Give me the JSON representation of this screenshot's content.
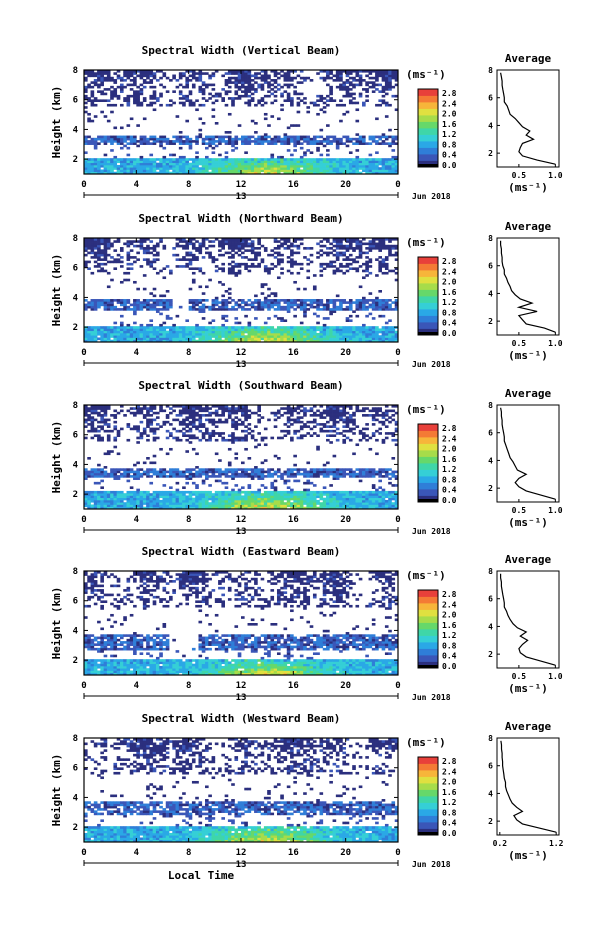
{
  "figure": {
    "xlabel": "Local Time",
    "date_label": "Jun 2018",
    "day_label": "13",
    "ylabel": "Height (km)",
    "cbar_unit": "(ms⁻¹)",
    "avg_title": "Average",
    "avg_xunit": "(ms⁻¹)"
  },
  "colormap": [
    "#2b2f7e",
    "#3a56b8",
    "#2f7ed8",
    "#2aa8e6",
    "#35cfd6",
    "#3fd6a8",
    "#66d86a",
    "#a7dc4a",
    "#e0e040",
    "#f7b53a",
    "#f47a35",
    "#e8403a"
  ],
  "chart_data": [
    {
      "type": "heatmap",
      "title": "Spectral Width (Vertical Beam)",
      "xticks": [
        "0",
        "4",
        "8",
        "12",
        "16",
        "20",
        "0"
      ],
      "yticks": [
        "8",
        "6",
        "4",
        "2"
      ],
      "xlim": [
        0,
        24
      ],
      "ylim": [
        1,
        8
      ],
      "cbar_ticks": [
        "2.8",
        "2.4",
        "2.0",
        "1.6",
        "1.2",
        "0.8",
        "0.4",
        "0.0"
      ],
      "profile": {
        "xticks": [
          "0.5",
          "1.0"
        ],
        "xlim": [
          0.2,
          1.05
        ],
        "yticks": [
          "8",
          "6",
          "4",
          "2"
        ],
        "ylim": [
          1,
          8
        ],
        "heights": [
          1.2,
          1.5,
          1.8,
          2.1,
          2.4,
          2.7,
          3.0,
          3.3,
          3.6,
          3.9,
          4.2,
          4.5,
          4.8,
          5.1,
          5.4,
          5.7,
          6.0,
          6.3,
          6.6,
          6.9,
          7.2,
          7.5,
          7.8
        ],
        "values": [
          1.0,
          0.75,
          0.55,
          0.5,
          0.52,
          0.55,
          0.7,
          0.6,
          0.65,
          0.55,
          0.5,
          0.45,
          0.38,
          0.36,
          0.34,
          0.3,
          0.3,
          0.29,
          0.28,
          0.27,
          0.27,
          0.26,
          0.25
        ]
      },
      "layers": {
        "low_top": 2.1,
        "mid": [
          3.0,
          3.6
        ],
        "gap_hours": null
      }
    },
    {
      "type": "heatmap",
      "title": "Spectral Width (Northward Beam)",
      "xticks": [
        "0",
        "4",
        "8",
        "12",
        "16",
        "20",
        "0"
      ],
      "yticks": [
        "8",
        "6",
        "4",
        "2"
      ],
      "xlim": [
        0,
        24
      ],
      "ylim": [
        1,
        8
      ],
      "cbar_ticks": [
        "2.8",
        "2.4",
        "2.0",
        "1.6",
        "1.2",
        "0.8",
        "0.4",
        "0.0"
      ],
      "profile": {
        "xticks": [
          "0.5",
          "1.0"
        ],
        "xlim": [
          0.2,
          1.05
        ],
        "yticks": [
          "8",
          "6",
          "4",
          "2"
        ],
        "ylim": [
          1,
          8
        ],
        "heights": [
          1.2,
          1.5,
          1.8,
          2.1,
          2.4,
          2.7,
          3.0,
          3.3,
          3.6,
          3.9,
          4.2,
          4.5,
          4.8,
          5.1,
          5.4,
          5.7,
          6.0,
          6.3,
          6.6,
          6.9,
          7.2,
          7.5,
          7.8
        ],
        "values": [
          1.0,
          0.85,
          0.6,
          0.55,
          0.5,
          0.75,
          0.5,
          0.68,
          0.52,
          0.45,
          0.4,
          0.38,
          0.35,
          0.33,
          0.3,
          0.3,
          0.28,
          0.27,
          0.27,
          0.26,
          0.26,
          0.25,
          0.25
        ]
      },
      "layers": {
        "low_top": 2.1,
        "mid": [
          3.1,
          3.9
        ],
        "gap_hours": [
          6.7,
          8.0
        ]
      }
    },
    {
      "type": "heatmap",
      "title": "Spectral Width (Southward Beam)",
      "xticks": [
        "0",
        "4",
        "8",
        "12",
        "16",
        "20",
        "0"
      ],
      "yticks": [
        "8",
        "6",
        "4",
        "2"
      ],
      "xlim": [
        0,
        24
      ],
      "ylim": [
        1,
        8
      ],
      "cbar_ticks": [
        "2.8",
        "2.4",
        "2.0",
        "1.6",
        "1.2",
        "0.8",
        "0.4",
        "0.0"
      ],
      "profile": {
        "xticks": [
          "0.5",
          "1.0"
        ],
        "xlim": [
          0.2,
          1.05
        ],
        "yticks": [
          "8",
          "6",
          "4",
          "2"
        ],
        "ylim": [
          1,
          8
        ],
        "heights": [
          1.2,
          1.5,
          1.8,
          2.1,
          2.4,
          2.7,
          3.0,
          3.3,
          3.6,
          3.9,
          4.2,
          4.5,
          4.8,
          5.1,
          5.4,
          5.7,
          6.0,
          6.3,
          6.6,
          6.9,
          7.2,
          7.5,
          7.8
        ],
        "values": [
          1.0,
          0.8,
          0.6,
          0.5,
          0.45,
          0.5,
          0.6,
          0.48,
          0.45,
          0.42,
          0.38,
          0.36,
          0.34,
          0.32,
          0.3,
          0.3,
          0.29,
          0.28,
          0.27,
          0.27,
          0.26,
          0.26,
          0.25
        ]
      },
      "layers": {
        "low_top": 2.2,
        "mid": [
          3.1,
          3.7
        ],
        "gap_hours": null
      }
    },
    {
      "type": "heatmap",
      "title": "Spectral Width (Eastward Beam)",
      "xticks": [
        "0",
        "4",
        "8",
        "12",
        "16",
        "20",
        "0"
      ],
      "yticks": [
        "8",
        "6",
        "4",
        "2"
      ],
      "xlim": [
        0,
        24
      ],
      "ylim": [
        1,
        8
      ],
      "cbar_ticks": [
        "2.8",
        "2.4",
        "2.0",
        "1.6",
        "1.2",
        "0.8",
        "0.4",
        "0.0"
      ],
      "profile": {
        "xticks": [
          "0.5",
          "1.0"
        ],
        "xlim": [
          0.2,
          1.05
        ],
        "yticks": [
          "8",
          "6",
          "4",
          "2"
        ],
        "ylim": [
          1,
          8
        ],
        "heights": [
          1.2,
          1.5,
          1.8,
          2.1,
          2.4,
          2.7,
          3.0,
          3.3,
          3.6,
          3.9,
          4.2,
          4.5,
          4.8,
          5.1,
          5.4,
          5.7,
          6.0,
          6.3,
          6.6,
          6.9,
          7.2,
          7.5,
          7.8
        ],
        "values": [
          1.0,
          0.8,
          0.6,
          0.52,
          0.5,
          0.55,
          0.62,
          0.52,
          0.6,
          0.48,
          0.42,
          0.38,
          0.35,
          0.33,
          0.3,
          0.3,
          0.29,
          0.28,
          0.27,
          0.26,
          0.26,
          0.25,
          0.25
        ]
      },
      "layers": {
        "low_top": 2.0,
        "mid": [
          2.7,
          3.8
        ],
        "gap_hours": [
          6.5,
          8.8
        ]
      }
    },
    {
      "type": "heatmap",
      "title": "Spectral Width (Westward Beam)",
      "xticks": [
        "0",
        "4",
        "8",
        "12",
        "16",
        "20",
        "0"
      ],
      "yticks": [
        "8",
        "6",
        "4",
        "2"
      ],
      "xlim": [
        0,
        24
      ],
      "ylim": [
        1,
        8
      ],
      "cbar_ticks": [
        "2.8",
        "2.4",
        "2.0",
        "1.6",
        "1.2",
        "0.8",
        "0.4",
        "0.0"
      ],
      "profile": {
        "xticks": [
          "0.2",
          "1.2"
        ],
        "xlim": [
          0.15,
          1.25
        ],
        "yticks": [
          "8",
          "6",
          "4",
          "2"
        ],
        "ylim": [
          1,
          8
        ],
        "heights": [
          1.2,
          1.5,
          1.8,
          2.1,
          2.4,
          2.7,
          3.0,
          3.3,
          3.6,
          3.9,
          4.2,
          4.5,
          4.8,
          5.1,
          5.4,
          5.7,
          6.0,
          6.3,
          6.6,
          6.9,
          7.2,
          7.5,
          7.8
        ],
        "values": [
          1.2,
          0.9,
          0.6,
          0.5,
          0.45,
          0.6,
          0.5,
          0.42,
          0.38,
          0.35,
          0.32,
          0.3,
          0.3,
          0.28,
          0.27,
          0.26,
          0.25,
          0.25,
          0.24,
          0.24,
          0.23,
          0.23,
          0.22
        ]
      },
      "layers": {
        "low_top": 2.1,
        "mid": [
          2.9,
          3.8
        ],
        "gap_hours": null
      }
    }
  ]
}
